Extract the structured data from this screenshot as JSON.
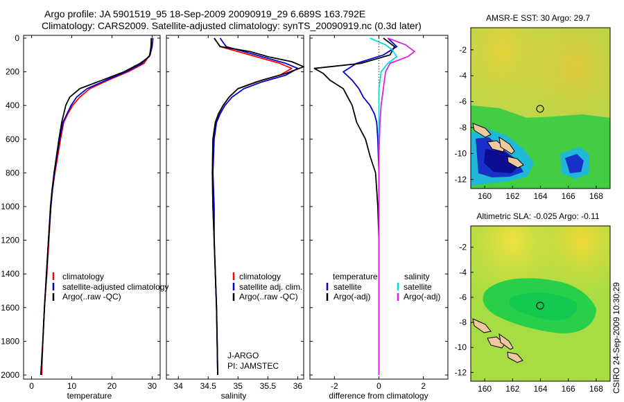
{
  "header": {
    "line1": "Argo profile: JA 5901519_95 18-Sep-2009 20090919_29 6.689S 163.792E",
    "line2": "Climatology: CARS2009. Satellite-adjusted climatology: synTS_20090919.nc (0.3d later)"
  },
  "footer": {
    "timestamp": "CSIRO 24-Sep-2009 10:30:29"
  },
  "colors": {
    "climatology": "#ff0000",
    "satellite": "#0000cc",
    "argo": "#000000",
    "salinity_satellite": "#00dddd",
    "salinity_argo": "#e020e0"
  },
  "chart_data": [
    {
      "type": "line",
      "xlabel": "temperature",
      "ylabel": "",
      "xlim": [
        -2,
        32
      ],
      "ylim": [
        2080,
        0
      ],
      "xticks": [
        0,
        10,
        20,
        30
      ],
      "yticks": [
        0,
        200,
        400,
        600,
        800,
        1000,
        1200,
        1400,
        1600,
        1800,
        2000
      ],
      "legend": [
        "climatology",
        "satellite-adjusted climatology",
        "Argo(..raw -QC)"
      ],
      "series": [
        {
          "name": "climatology",
          "color": "#ff0000",
          "points": [
            [
              29.8,
              0
            ],
            [
              29.7,
              50
            ],
            [
              29.4,
              100
            ],
            [
              28,
              150
            ],
            [
              24,
              200
            ],
            [
              19,
              250
            ],
            [
              14.5,
              300
            ],
            [
              12,
              350
            ],
            [
              10.2,
              400
            ],
            [
              9,
              450
            ],
            [
              8,
              500
            ],
            [
              7.2,
              600
            ],
            [
              6.5,
              700
            ],
            [
              5.8,
              800
            ],
            [
              5.2,
              900
            ],
            [
              4.8,
              1000
            ],
            [
              4.3,
              1200
            ],
            [
              3.8,
              1400
            ],
            [
              3.2,
              1600
            ],
            [
              2.8,
              1800
            ],
            [
              2.5,
              2000
            ]
          ]
        },
        {
          "name": "satellite-adjusted climatology",
          "color": "#0000cc",
          "points": [
            [
              30.2,
              0
            ],
            [
              30,
              50
            ],
            [
              29.5,
              100
            ],
            [
              27.5,
              150
            ],
            [
              23.5,
              200
            ],
            [
              18.5,
              250
            ],
            [
              13.8,
              300
            ],
            [
              11.2,
              350
            ],
            [
              9.8,
              400
            ],
            [
              8.8,
              450
            ],
            [
              7.8,
              500
            ],
            [
              7,
              600
            ],
            [
              6.3,
              700
            ],
            [
              5.7,
              800
            ],
            [
              5.2,
              900
            ],
            [
              4.8,
              1000
            ],
            [
              4.2,
              1200
            ],
            [
              3.7,
              1400
            ],
            [
              3.2,
              1600
            ],
            [
              2.8,
              1800
            ],
            [
              2.3,
              2000
            ]
          ]
        },
        {
          "name": "Argo(..raw -QC)",
          "color": "#000000",
          "points": [
            [
              29.8,
              0
            ],
            [
              29.7,
              60
            ],
            [
              29.3,
              110
            ],
            [
              27,
              150
            ],
            [
              23,
              200
            ],
            [
              17.5,
              250
            ],
            [
              12,
              300
            ],
            [
              9.5,
              350
            ],
            [
              8.5,
              400
            ],
            [
              8,
              450
            ],
            [
              7.5,
              500
            ],
            [
              6.8,
              600
            ],
            [
              6.2,
              700
            ],
            [
              5.6,
              800
            ],
            [
              5.1,
              900
            ],
            [
              4.7,
              1000
            ],
            [
              4.2,
              1200
            ],
            [
              3.7,
              1400
            ],
            [
              3.2,
              1600
            ],
            [
              2.8,
              1800
            ],
            [
              2.3,
              2000
            ]
          ]
        }
      ]
    },
    {
      "type": "line",
      "xlabel": "salinity",
      "xlim": [
        33.8,
        36.1
      ],
      "ylim": [
        2080,
        0
      ],
      "xticks": [
        34,
        34.5,
        35,
        35.5,
        36
      ],
      "legend": [
        "climatology",
        "satellite adj. clim.",
        "Argo(..raw -QC)"
      ],
      "annotation": [
        "J-ARGO",
        "PI: JAMSTEC"
      ],
      "series": [
        {
          "name": "climatology",
          "color": "#ff0000",
          "points": [
            [
              34.6,
              0
            ],
            [
              34.7,
              50
            ],
            [
              35.2,
              100
            ],
            [
              35.7,
              150
            ],
            [
              35.9,
              180
            ],
            [
              35.7,
              220
            ],
            [
              35.3,
              260
            ],
            [
              35,
              300
            ],
            [
              34.85,
              350
            ],
            [
              34.75,
              400
            ],
            [
              34.68,
              450
            ],
            [
              34.62,
              500
            ],
            [
              34.58,
              600
            ],
            [
              34.57,
              800
            ],
            [
              34.58,
              1000
            ],
            [
              34.6,
              1200
            ],
            [
              34.62,
              1400
            ],
            [
              34.64,
              1600
            ],
            [
              34.65,
              1800
            ],
            [
              34.66,
              2000
            ]
          ]
        },
        {
          "name": "satellite adj. clim.",
          "color": "#0000cc",
          "points": [
            [
              34.7,
              0
            ],
            [
              34.8,
              50
            ],
            [
              35.3,
              100
            ],
            [
              35.8,
              150
            ],
            [
              36,
              180
            ],
            [
              35.8,
              220
            ],
            [
              35.4,
              260
            ],
            [
              35.1,
              300
            ],
            [
              34.9,
              350
            ],
            [
              34.78,
              400
            ],
            [
              34.7,
              450
            ],
            [
              34.64,
              500
            ],
            [
              34.6,
              600
            ],
            [
              34.58,
              800
            ],
            [
              34.6,
              1000
            ],
            [
              34.6,
              1200
            ],
            [
              34.62,
              1400
            ],
            [
              34.64,
              1600
            ],
            [
              34.65,
              1800
            ],
            [
              34.66,
              2000
            ]
          ]
        },
        {
          "name": "Argo(..raw -QC)",
          "color": "#000000",
          "points": [
            [
              34.6,
              0
            ],
            [
              34.7,
              50
            ],
            [
              35.2,
              80
            ],
            [
              35.5,
              110
            ],
            [
              35.9,
              140
            ],
            [
              36.1,
              170
            ],
            [
              35.8,
              210
            ],
            [
              35.4,
              250
            ],
            [
              35,
              300
            ],
            [
              34.85,
              350
            ],
            [
              34.75,
              400
            ],
            [
              34.67,
              450
            ],
            [
              34.62,
              500
            ],
            [
              34.58,
              600
            ],
            [
              34.57,
              800
            ],
            [
              34.58,
              1000
            ],
            [
              34.6,
              1200
            ],
            [
              34.62,
              1400
            ],
            [
              34.64,
              1600
            ],
            [
              34.65,
              1800
            ],
            [
              34.66,
              2000
            ]
          ]
        }
      ]
    },
    {
      "type": "line",
      "xlabel": "difference from climatology",
      "xlim": [
        -3.1,
        3.1
      ],
      "ylim": [
        2080,
        0
      ],
      "xticks": [
        -2,
        0,
        2
      ],
      "legend": [
        "temperature",
        "satellite",
        "Argo(-adj)",
        "salinity",
        "satellite",
        "Argo(-adj)"
      ],
      "series": [
        {
          "name": "temperature satellite",
          "color": "#0000cc",
          "points": [
            [
              0.4,
              0
            ],
            [
              0.8,
              50
            ],
            [
              0.2,
              100
            ],
            [
              -1,
              150
            ],
            [
              -1.6,
              200
            ],
            [
              -1.2,
              250
            ],
            [
              -0.9,
              300
            ],
            [
              -0.7,
              350
            ],
            [
              -0.4,
              400
            ],
            [
              -0.2,
              450
            ],
            [
              -0.1,
              500
            ],
            [
              -0.05,
              600
            ],
            [
              0,
              800
            ],
            [
              0,
              1000
            ],
            [
              0,
              1200
            ],
            [
              0,
              1600
            ],
            [
              0,
              2000
            ]
          ]
        },
        {
          "name": "temperature Argo(-adj)",
          "color": "#000000",
          "points": [
            [
              0.2,
              0
            ],
            [
              0.7,
              50
            ],
            [
              0.5,
              100
            ],
            [
              -0.8,
              150
            ],
            [
              -2.9,
              180
            ],
            [
              -2.5,
              210
            ],
            [
              -2.2,
              250
            ],
            [
              -1.6,
              300
            ],
            [
              -1.2,
              400
            ],
            [
              -1,
              500
            ],
            [
              -0.6,
              600
            ],
            [
              -0.4,
              700
            ],
            [
              -0.15,
              800
            ],
            [
              -0.1,
              900
            ],
            [
              -0.05,
              1000
            ],
            [
              0,
              1200
            ],
            [
              0,
              1400
            ],
            [
              0,
              1600
            ],
            [
              0,
              2000
            ]
          ]
        },
        {
          "name": "salinity satellite",
          "color": "#00dddd",
          "points": [
            [
              -0.4,
              0
            ],
            [
              0.3,
              40
            ],
            [
              0.6,
              70
            ],
            [
              0.8,
              110
            ],
            [
              0.4,
              150
            ],
            [
              0.1,
              200
            ],
            [
              0,
              300
            ],
            [
              0,
              500
            ],
            [
              0,
              800
            ],
            [
              0,
              1200
            ],
            [
              0,
              2000
            ]
          ]
        },
        {
          "name": "salinity Argo(-adj)",
          "color": "#e020e0",
          "points": [
            [
              0.4,
              0
            ],
            [
              1.2,
              40
            ],
            [
              1.6,
              80
            ],
            [
              1.3,
              110
            ],
            [
              0.5,
              150
            ],
            [
              0.3,
              200
            ],
            [
              0.2,
              300
            ],
            [
              0.1,
              400
            ],
            [
              0.05,
              500
            ],
            [
              0,
              700
            ],
            [
              0,
              1000
            ],
            [
              0,
              2000
            ]
          ]
        }
      ]
    },
    {
      "type": "heatmap",
      "title": "AMSR-E SST: 30 Argo: 29.7",
      "xlim": [
        159,
        169
      ],
      "ylim": [
        -12.7,
        -0.3
      ],
      "xticks": [
        160,
        162,
        164,
        166,
        168
      ],
      "yticks": [
        -2,
        -4,
        -6,
        -8,
        -10,
        -12
      ],
      "marker": {
        "x": 163.792,
        "y": -6.689
      }
    },
    {
      "type": "heatmap",
      "title": "Altimetric SLA: -0.025 Argo: -0.11",
      "xlim": [
        159,
        169
      ],
      "ylim": [
        -12.7,
        -0.3
      ],
      "xticks": [
        160,
        162,
        164,
        166,
        168
      ],
      "yticks": [
        -2,
        -4,
        -6,
        -8,
        -10,
        -12
      ],
      "marker": {
        "x": 163.792,
        "y": -6.689
      }
    }
  ]
}
